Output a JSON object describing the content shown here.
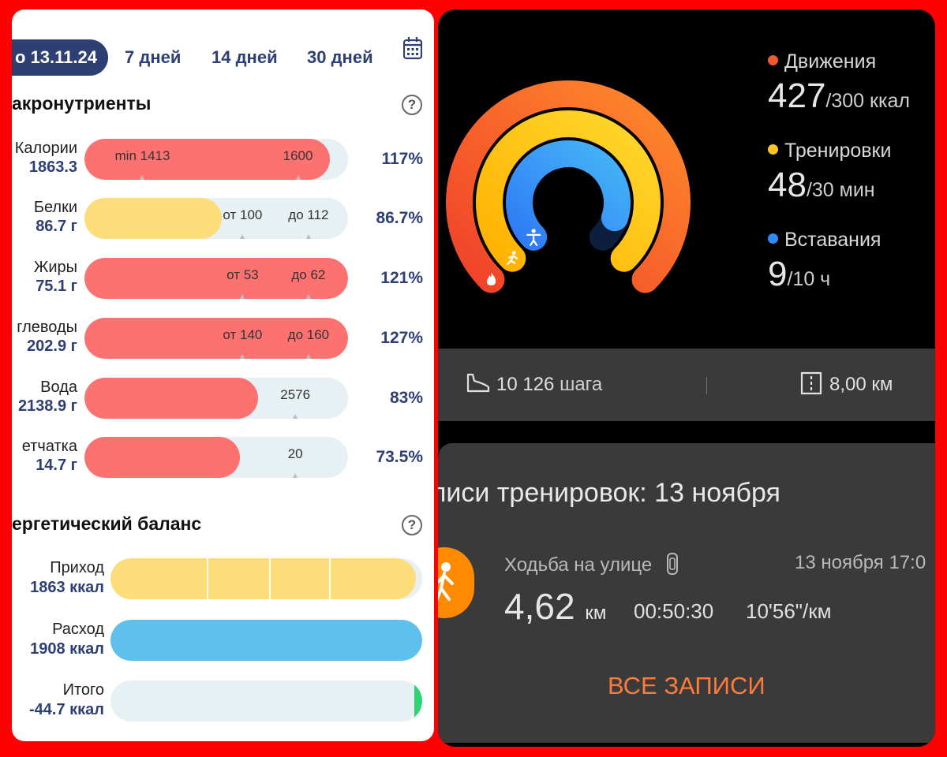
{
  "left": {
    "tabs": [
      {
        "label": "о 13.11.24",
        "active": true
      },
      {
        "label": "7 дней"
      },
      {
        "label": "14 дней"
      },
      {
        "label": "30 дней"
      }
    ],
    "calendar_icon": "calendar-icon",
    "macro_title": "акронутриенты",
    "balance_title": "ергетический баланс",
    "help_label": "?",
    "nutrients": [
      {
        "name": "Калории",
        "value": "1863.3",
        "fill": 0.93,
        "color": "#fd7271",
        "marks": [
          "min 1413",
          "1600"
        ],
        "ticks": [
          0.22,
          0.81
        ],
        "pct": "117%"
      },
      {
        "name": "Белки",
        "value": "86.7 г",
        "fill": 0.52,
        "color": "#fddd7a",
        "marks": [
          "от 100",
          "до 112"
        ],
        "ticks": [
          0.6,
          0.85
        ],
        "pct": "86.7%"
      },
      {
        "name": "Жиры",
        "value": "75.1 г",
        "fill": 1.0,
        "color": "#fd7271",
        "marks": [
          "от 53",
          "до 62"
        ],
        "ticks": [
          0.6,
          0.85
        ],
        "pct": "121%"
      },
      {
        "name": "глеводы",
        "value": "202.9 г",
        "fill": 1.0,
        "color": "#fd7271",
        "marks": [
          "от 140",
          "до 160"
        ],
        "ticks": [
          0.6,
          0.85
        ],
        "pct": "127%"
      },
      {
        "name": "Вода",
        "value": "2138.9 г",
        "fill": 0.66,
        "color": "#fd7271",
        "marks": [
          "2576"
        ],
        "ticks": [
          0.8
        ],
        "pct": "83%"
      },
      {
        "name": "етчатка",
        "value": "14.7 г",
        "fill": 0.59,
        "color": "#fd7271",
        "marks": [
          "20"
        ],
        "ticks": [
          0.8
        ],
        "pct": "73.5%"
      }
    ],
    "balance": [
      {
        "name": "Приход",
        "value": "1863 ккал",
        "fill": 0.98,
        "color": "#fddd7a",
        "segments": true
      },
      {
        "name": "Расход",
        "value": "1908 ккал",
        "fill": 1.0,
        "color": "#5ec0ec"
      },
      {
        "name": "Итого",
        "value": "-44.7 ккал",
        "fill": 0.0,
        "color": "#2fd277",
        "end_marker": true
      }
    ]
  },
  "right": {
    "rings": [
      {
        "name": "move",
        "progress": 1.42,
        "colors": [
          "#f0412a",
          "#ff8a2b"
        ],
        "icon": "fire-icon"
      },
      {
        "name": "exercise",
        "progress": 1.6,
        "colors": [
          "#ffb200",
          "#ffd72e"
        ],
        "icon": "running-icon"
      },
      {
        "name": "stand",
        "progress": 0.9,
        "colors": [
          "#2f7cf5",
          "#45b4f7"
        ],
        "icon": "standing-person-icon"
      }
    ],
    "metrics": [
      {
        "label": "Движения",
        "color": "#f05a2c",
        "value": "427",
        "goal": "/300 ккал"
      },
      {
        "label": "Тренировки",
        "color": "#ffc423",
        "value": "48",
        "goal": "/30 мин"
      },
      {
        "label": "Вставания",
        "color": "#2f8bf5",
        "value": "9",
        "goal": "/10 ч"
      }
    ],
    "steps": "10 126",
    "steps_unit": "шага",
    "distance": "8,00",
    "distance_unit": "км",
    "workouts_title": "писи тренировок: 13 ноября",
    "workout": {
      "name": "Ходьба на улице",
      "date": "13 ноября 17:0",
      "distance": "4,62",
      "distance_unit": "км",
      "duration": "00:50:30",
      "pace": "10'56\"/км"
    },
    "all_button": "ВСЕ ЗАПИСИ"
  }
}
